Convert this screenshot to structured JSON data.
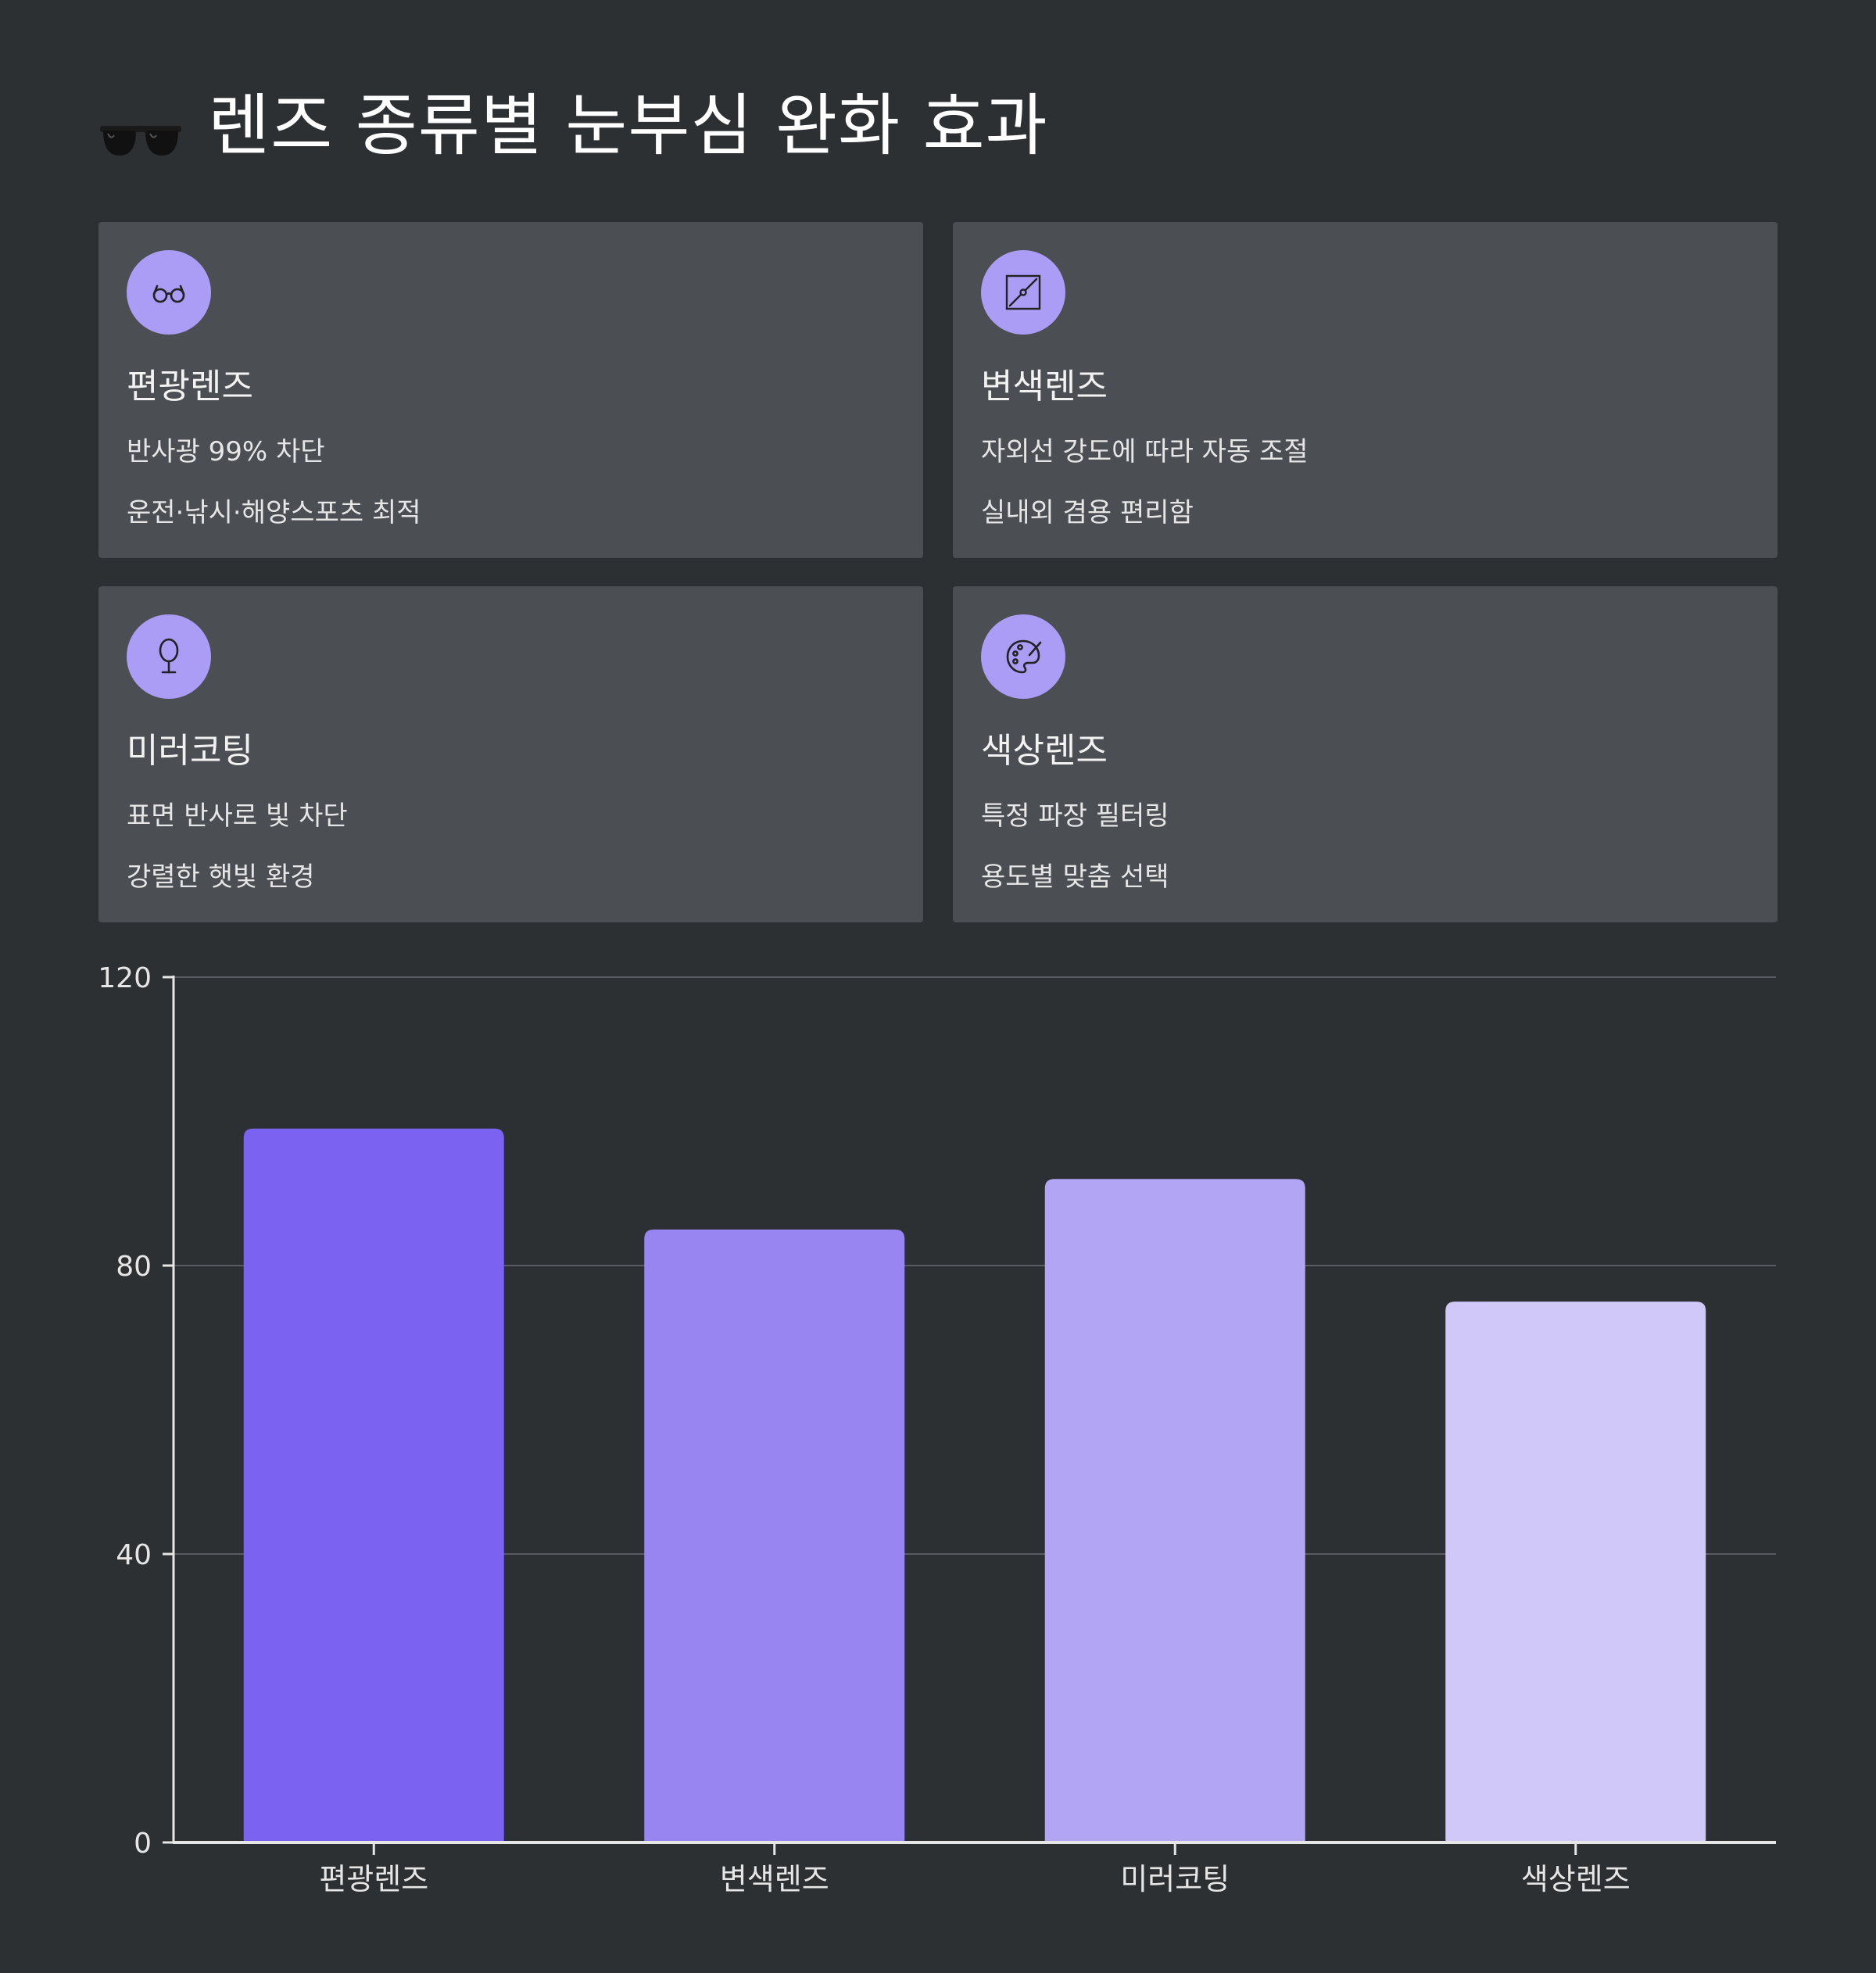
{
  "header": {
    "title": "렌즈 종류별 눈부심 완화 효과",
    "icon": "sunglasses-icon"
  },
  "cards": [
    {
      "icon": "glasses-icon",
      "title": "편광렌즈",
      "line1": "반사광 99% 차단",
      "line2": "운전·낚시·해양스포츠 최적"
    },
    {
      "icon": "gradient-square-icon",
      "title": "변색렌즈",
      "line1": "자외선 강도에 따라 자동 조절",
      "line2": "실내외 겸용 편리함"
    },
    {
      "icon": "mirror-icon",
      "title": "미러코팅",
      "line1": "표면 반사로 빛 차단",
      "line2": "강렬한 햇빛 환경"
    },
    {
      "icon": "palette-icon",
      "title": "색상렌즈",
      "line1": "특정 파장 필터링",
      "line2": "용도별 맞춤 선택"
    }
  ],
  "colors": {
    "background": "#2d3033",
    "card": "#4b4f53",
    "icon_circle": "#ab9cf6"
  },
  "chart_data": {
    "type": "bar",
    "title": "",
    "xlabel": "",
    "ylabel": "",
    "categories": [
      "편광렌즈",
      "변색렌즈",
      "미러코팅",
      "색상렌즈"
    ],
    "values": [
      99,
      85,
      92,
      75
    ],
    "ylim": [
      0,
      120
    ],
    "yticks": [
      0,
      40,
      80,
      120
    ],
    "grid": true,
    "bar_colors": [
      "#7b62f0",
      "#9885f1",
      "#b1a5f4",
      "#d1c8fa"
    ]
  }
}
